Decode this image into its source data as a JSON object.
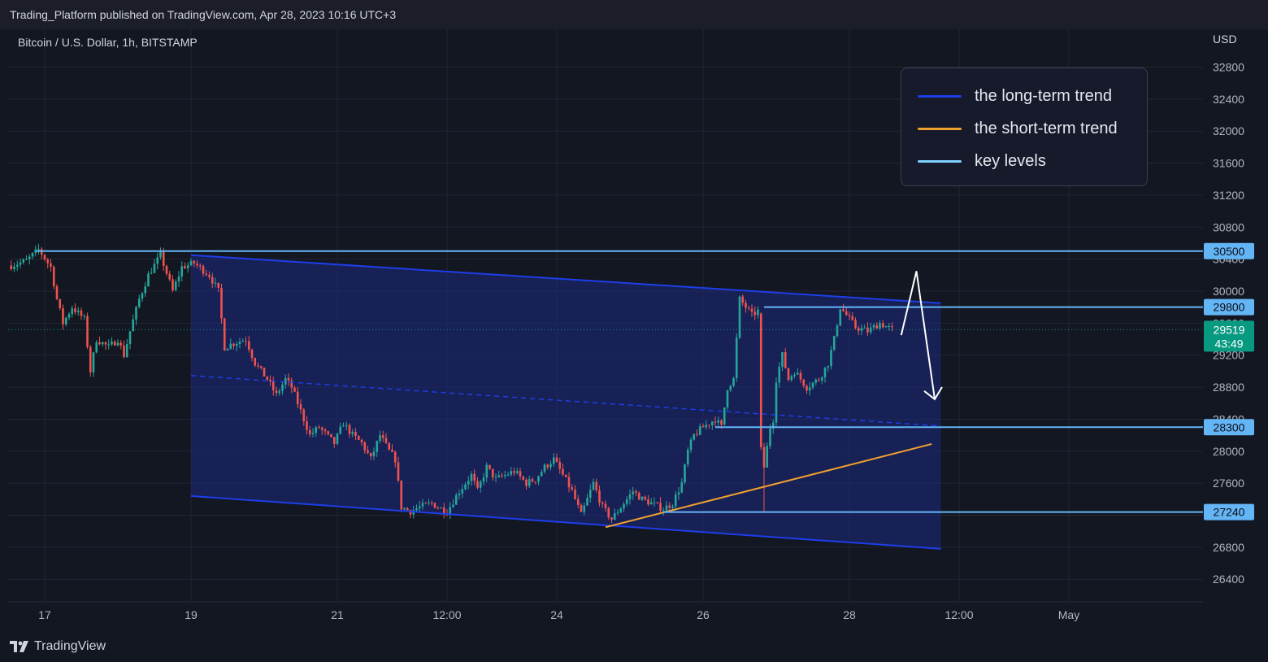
{
  "header": {
    "published": "Trading_Platform published on TradingView.com, Apr 28, 2023 10:16 UTC+3"
  },
  "symbol": {
    "title": "Bitcoin / U.S. Dollar, 1h, BITSTAMP",
    "currency": "USD"
  },
  "footer": {
    "brand": "TradingView"
  },
  "legend": [
    {
      "label": "the long-term trend",
      "color": "#1e3ee8"
    },
    {
      "label": "the short-term trend",
      "color": "#f0a030"
    },
    {
      "label": "key levels",
      "color": "#7fd3ff"
    }
  ],
  "chart_data": {
    "type": "candlestick",
    "title": "Bitcoin / U.S. Dollar, 1h, BITSTAMP",
    "ylabel": "USD",
    "ylim": [
      26200,
      33200
    ],
    "y_ticks": [
      32800,
      32400,
      32000,
      31600,
      31200,
      30800,
      30400,
      30000,
      29600,
      29200,
      28800,
      28400,
      28000,
      27600,
      27200,
      26800,
      26400
    ],
    "x_ticks": [
      {
        "label": "17",
        "t": 0
      },
      {
        "label": "19",
        "t": 48
      },
      {
        "label": "21",
        "t": 96
      },
      {
        "label": "12:00",
        "t": 132
      },
      {
        "label": "24",
        "t": 168
      },
      {
        "label": "26",
        "t": 216
      },
      {
        "label": "28",
        "t": 264
      },
      {
        "label": "12:00",
        "t": 300
      },
      {
        "label": "May",
        "t": 336
      }
    ],
    "current_price": {
      "value": 29519,
      "countdown": "43:49",
      "color": "#089981"
    },
    "key_levels": [
      30500,
      29800,
      28300,
      27240
    ],
    "key_level_color": "#64b5f6",
    "up_color": "#26a69a",
    "down_color": "#ef5350",
    "path": [
      [
        -11,
        30320
      ],
      [
        -6,
        30380
      ],
      [
        -2,
        30520
      ],
      [
        2,
        30300
      ],
      [
        4,
        29900
      ],
      [
        6,
        29600
      ],
      [
        9,
        29800
      ],
      [
        13,
        29650
      ],
      [
        15,
        29000
      ],
      [
        17,
        29400
      ],
      [
        21,
        29300
      ],
      [
        24,
        29400
      ],
      [
        26,
        29200
      ],
      [
        28,
        29500
      ],
      [
        31,
        29900
      ],
      [
        34,
        30200
      ],
      [
        38,
        30450
      ],
      [
        42,
        30000
      ],
      [
        45,
        30300
      ],
      [
        49,
        30350
      ],
      [
        54,
        30200
      ],
      [
        57,
        30000
      ],
      [
        59,
        29300
      ],
      [
        62,
        29350
      ],
      [
        66,
        29400
      ],
      [
        69,
        29100
      ],
      [
        73,
        28900
      ],
      [
        76,
        28700
      ],
      [
        79,
        28900
      ],
      [
        81,
        28800
      ],
      [
        84,
        28500
      ],
      [
        87,
        28200
      ],
      [
        90,
        28300
      ],
      [
        95,
        28100
      ],
      [
        98,
        28350
      ],
      [
        101,
        28200
      ],
      [
        104,
        28100
      ],
      [
        107,
        27900
      ],
      [
        110,
        28200
      ],
      [
        113,
        28000
      ],
      [
        115,
        27900
      ],
      [
        117,
        27300
      ],
      [
        120,
        27250
      ],
      [
        123,
        27300
      ],
      [
        127,
        27350
      ],
      [
        129,
        27300
      ],
      [
        132,
        27250
      ],
      [
        136,
        27500
      ],
      [
        140,
        27700
      ],
      [
        142,
        27500
      ],
      [
        145,
        27800
      ],
      [
        148,
        27650
      ],
      [
        151,
        27700
      ],
      [
        154,
        27750
      ],
      [
        158,
        27600
      ],
      [
        161,
        27650
      ],
      [
        164,
        27800
      ],
      [
        167,
        27900
      ],
      [
        170,
        27700
      ],
      [
        173,
        27500
      ],
      [
        176,
        27200
      ],
      [
        180,
        27600
      ],
      [
        183,
        27300
      ],
      [
        186,
        27150
      ],
      [
        190,
        27350
      ],
      [
        193,
        27500
      ],
      [
        196,
        27400
      ],
      [
        199,
        27350
      ],
      [
        203,
        27280
      ],
      [
        206,
        27350
      ],
      [
        209,
        27600
      ],
      [
        211,
        28000
      ],
      [
        213,
        28200
      ],
      [
        216,
        28300
      ],
      [
        220,
        28400
      ],
      [
        222,
        28300
      ],
      [
        224,
        28800
      ],
      [
        226,
        28900
      ],
      [
        228,
        29900
      ],
      [
        230,
        29800
      ],
      [
        232,
        29700
      ],
      [
        234,
        29750
      ],
      [
        235,
        28100
      ],
      [
        236,
        27800
      ],
      [
        238,
        28300
      ],
      [
        239,
        28400
      ],
      [
        240,
        28900
      ],
      [
        242,
        29200
      ],
      [
        244,
        28900
      ],
      [
        246,
        29000
      ],
      [
        250,
        28800
      ],
      [
        254,
        28900
      ],
      [
        257,
        29100
      ],
      [
        259,
        29400
      ],
      [
        261,
        29800
      ],
      [
        263,
        29700
      ],
      [
        266,
        29550
      ],
      [
        270,
        29500
      ],
      [
        274,
        29600
      ],
      [
        278,
        29519
      ]
    ],
    "annotations": {
      "upper_channel": [
        [
          48,
          30450
        ],
        [
          294,
          29850
        ]
      ],
      "lower_channel": [
        [
          48,
          27440
        ],
        [
          294,
          26780
        ]
      ],
      "middle_channel": [
        [
          48,
          28945
        ],
        [
          294,
          28315
        ]
      ],
      "short_term_trend": [
        [
          184,
          27050
        ],
        [
          291,
          28090
        ]
      ],
      "projection": [
        [
          281,
          29450
        ],
        [
          286,
          30250
        ],
        [
          292,
          28650
        ]
      ]
    }
  }
}
